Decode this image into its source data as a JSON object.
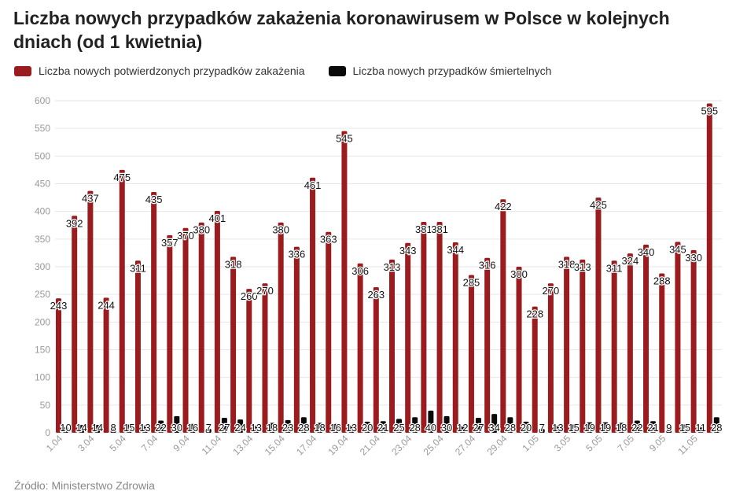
{
  "title": "Liczba nowych przypadków zakażenia koronawirusem w Polsce w kolejnych dniach (od 1 kwietnia)",
  "source": "Źródło: Ministerstwo Zdrowia",
  "colors": {
    "cases": "#9b1c1f",
    "deaths": "#0a0a0a",
    "grid": "#e6e6e6"
  },
  "chart_data": {
    "type": "bar",
    "title": "Liczba nowych przypadków zakażenia koronawirusem w Polsce w kolejnych dniach (od 1 kwietnia)",
    "ylim": [
      0,
      600
    ],
    "yticks": [
      0,
      50,
      100,
      150,
      200,
      250,
      300,
      350,
      400,
      450,
      500,
      550,
      600
    ],
    "grid": true,
    "legend_position": "top-left",
    "categories": [
      "1.04",
      "2.04",
      "3.04",
      "4.04",
      "5.04",
      "6.04",
      "7.04",
      "8.04",
      "9.04",
      "10.04",
      "11.04",
      "12.04",
      "13.04",
      "14.04",
      "15.04",
      "16.04",
      "17.04",
      "18.04",
      "19.04",
      "20.04",
      "21.04",
      "22.04",
      "23.04",
      "24.04",
      "25.04",
      "26.04",
      "27.04",
      "28.04",
      "29.04",
      "30.04",
      "1.05",
      "2.05",
      "3.05",
      "4.05",
      "5.05",
      "6.05",
      "7.05",
      "8.05",
      "9.05",
      "10.05",
      "11.05",
      "12.05"
    ],
    "tick_labels": [
      "1.04",
      "",
      "3.04",
      "",
      "5.04",
      "",
      "7.04",
      "",
      "9.04",
      "",
      "11.04",
      "",
      "13.04",
      "",
      "15.04",
      "",
      "17.04",
      "",
      "19.04",
      "",
      "21.04",
      "",
      "23.04",
      "",
      "25.04",
      "",
      "27.04",
      "",
      "29.04",
      "",
      "1.05",
      "",
      "3.05",
      "",
      "5.05",
      "",
      "7.05",
      "",
      "9.05",
      "",
      "11.05",
      ""
    ],
    "series": [
      {
        "name": "Liczba nowych potwierdzonych przypadków zakażenia",
        "values": [
          243,
          392,
          437,
          244,
          475,
          311,
          435,
          357,
          370,
          380,
          401,
          318,
          260,
          270,
          380,
          336,
          461,
          363,
          545,
          306,
          263,
          313,
          343,
          381,
          381,
          344,
          285,
          316,
          422,
          300,
          228,
          270,
          318,
          313,
          425,
          311,
          324,
          340,
          288,
          345,
          330,
          595
        ]
      },
      {
        "name": "Liczba nowych przypadków śmiertelnych",
        "values": [
          10,
          14,
          14,
          8,
          15,
          13,
          22,
          30,
          16,
          7,
          27,
          24,
          13,
          18,
          23,
          28,
          18,
          16,
          13,
          20,
          21,
          25,
          28,
          40,
          30,
          12,
          27,
          34,
          28,
          20,
          7,
          13,
          15,
          19,
          19,
          18,
          22,
          21,
          9,
          15,
          11,
          28
        ]
      }
    ]
  }
}
